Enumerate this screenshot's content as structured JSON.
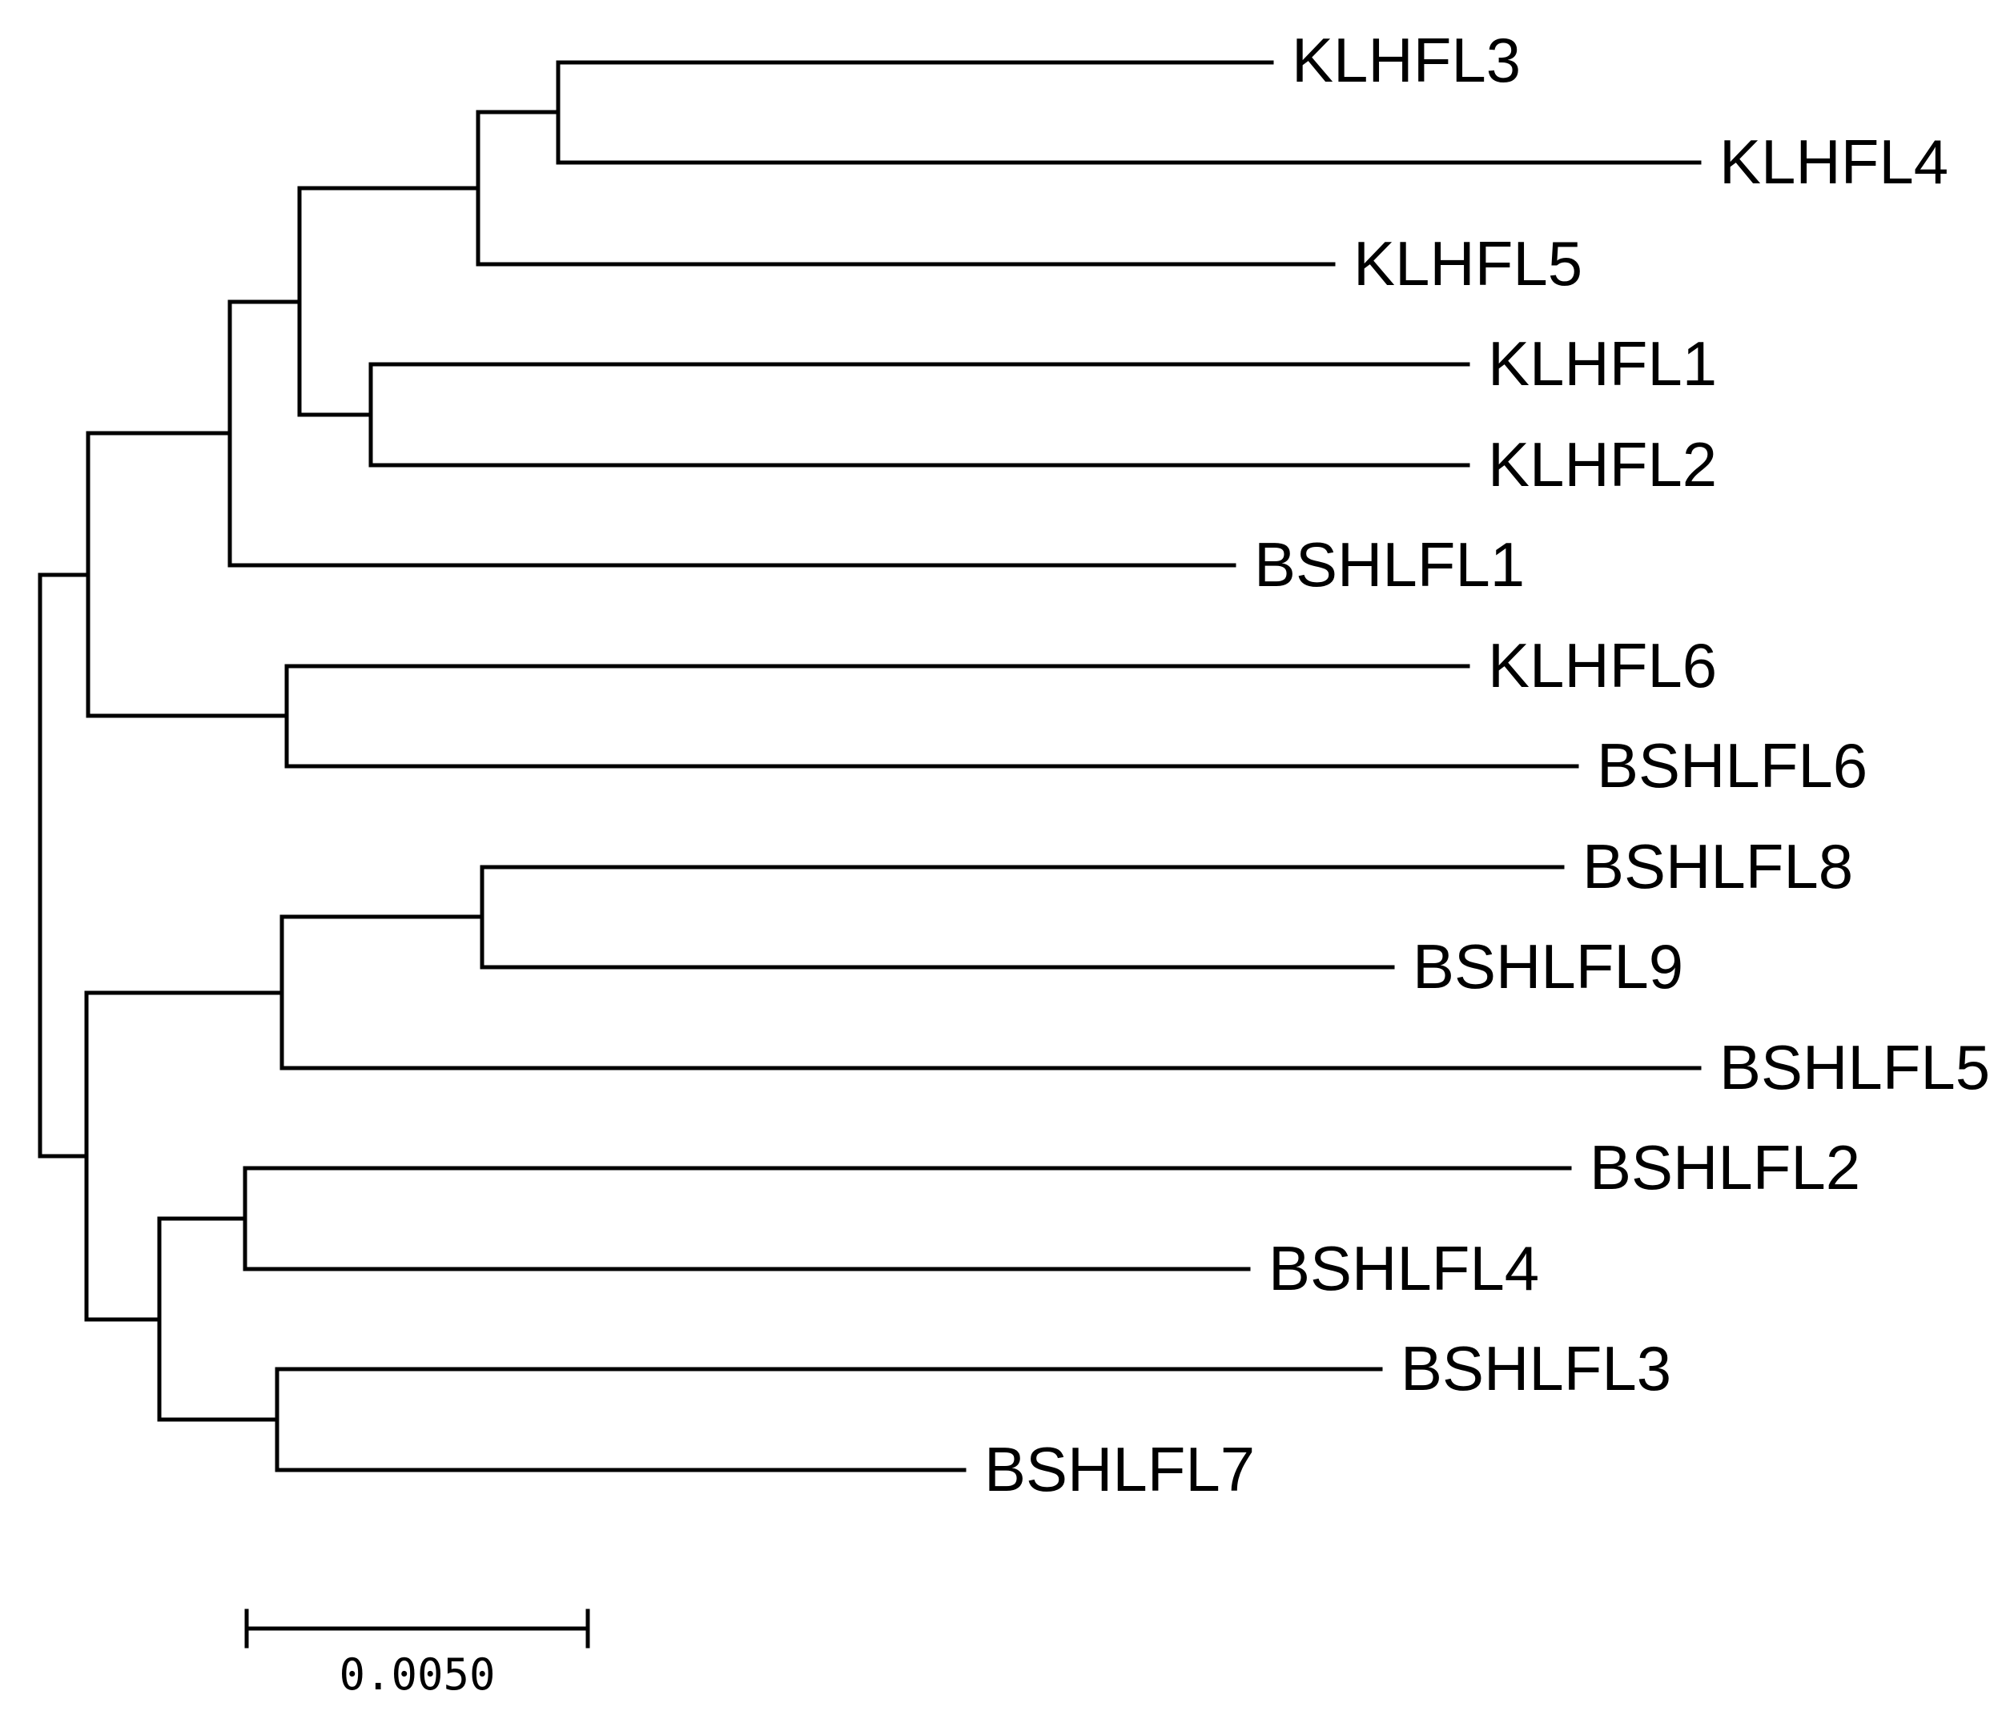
{
  "tree": {
    "leaves": [
      "KLHFL3",
      "KLHFL4",
      "KLHFL5",
      "KLHFL1",
      "KLHFL2",
      "BSHLFL1",
      "KLHFL6",
      "BSHLFL6",
      "BSHLFL8",
      "BSHLFL9",
      "BSHLFL5",
      "BSHLFL2",
      "BSHLFL4",
      "BSHLFL3",
      "BSHLFL7"
    ]
  },
  "scale_bar": {
    "label": "0.0050",
    "value": 0.005
  },
  "colors": {
    "line": "#000000",
    "background": "#ffffff"
  }
}
